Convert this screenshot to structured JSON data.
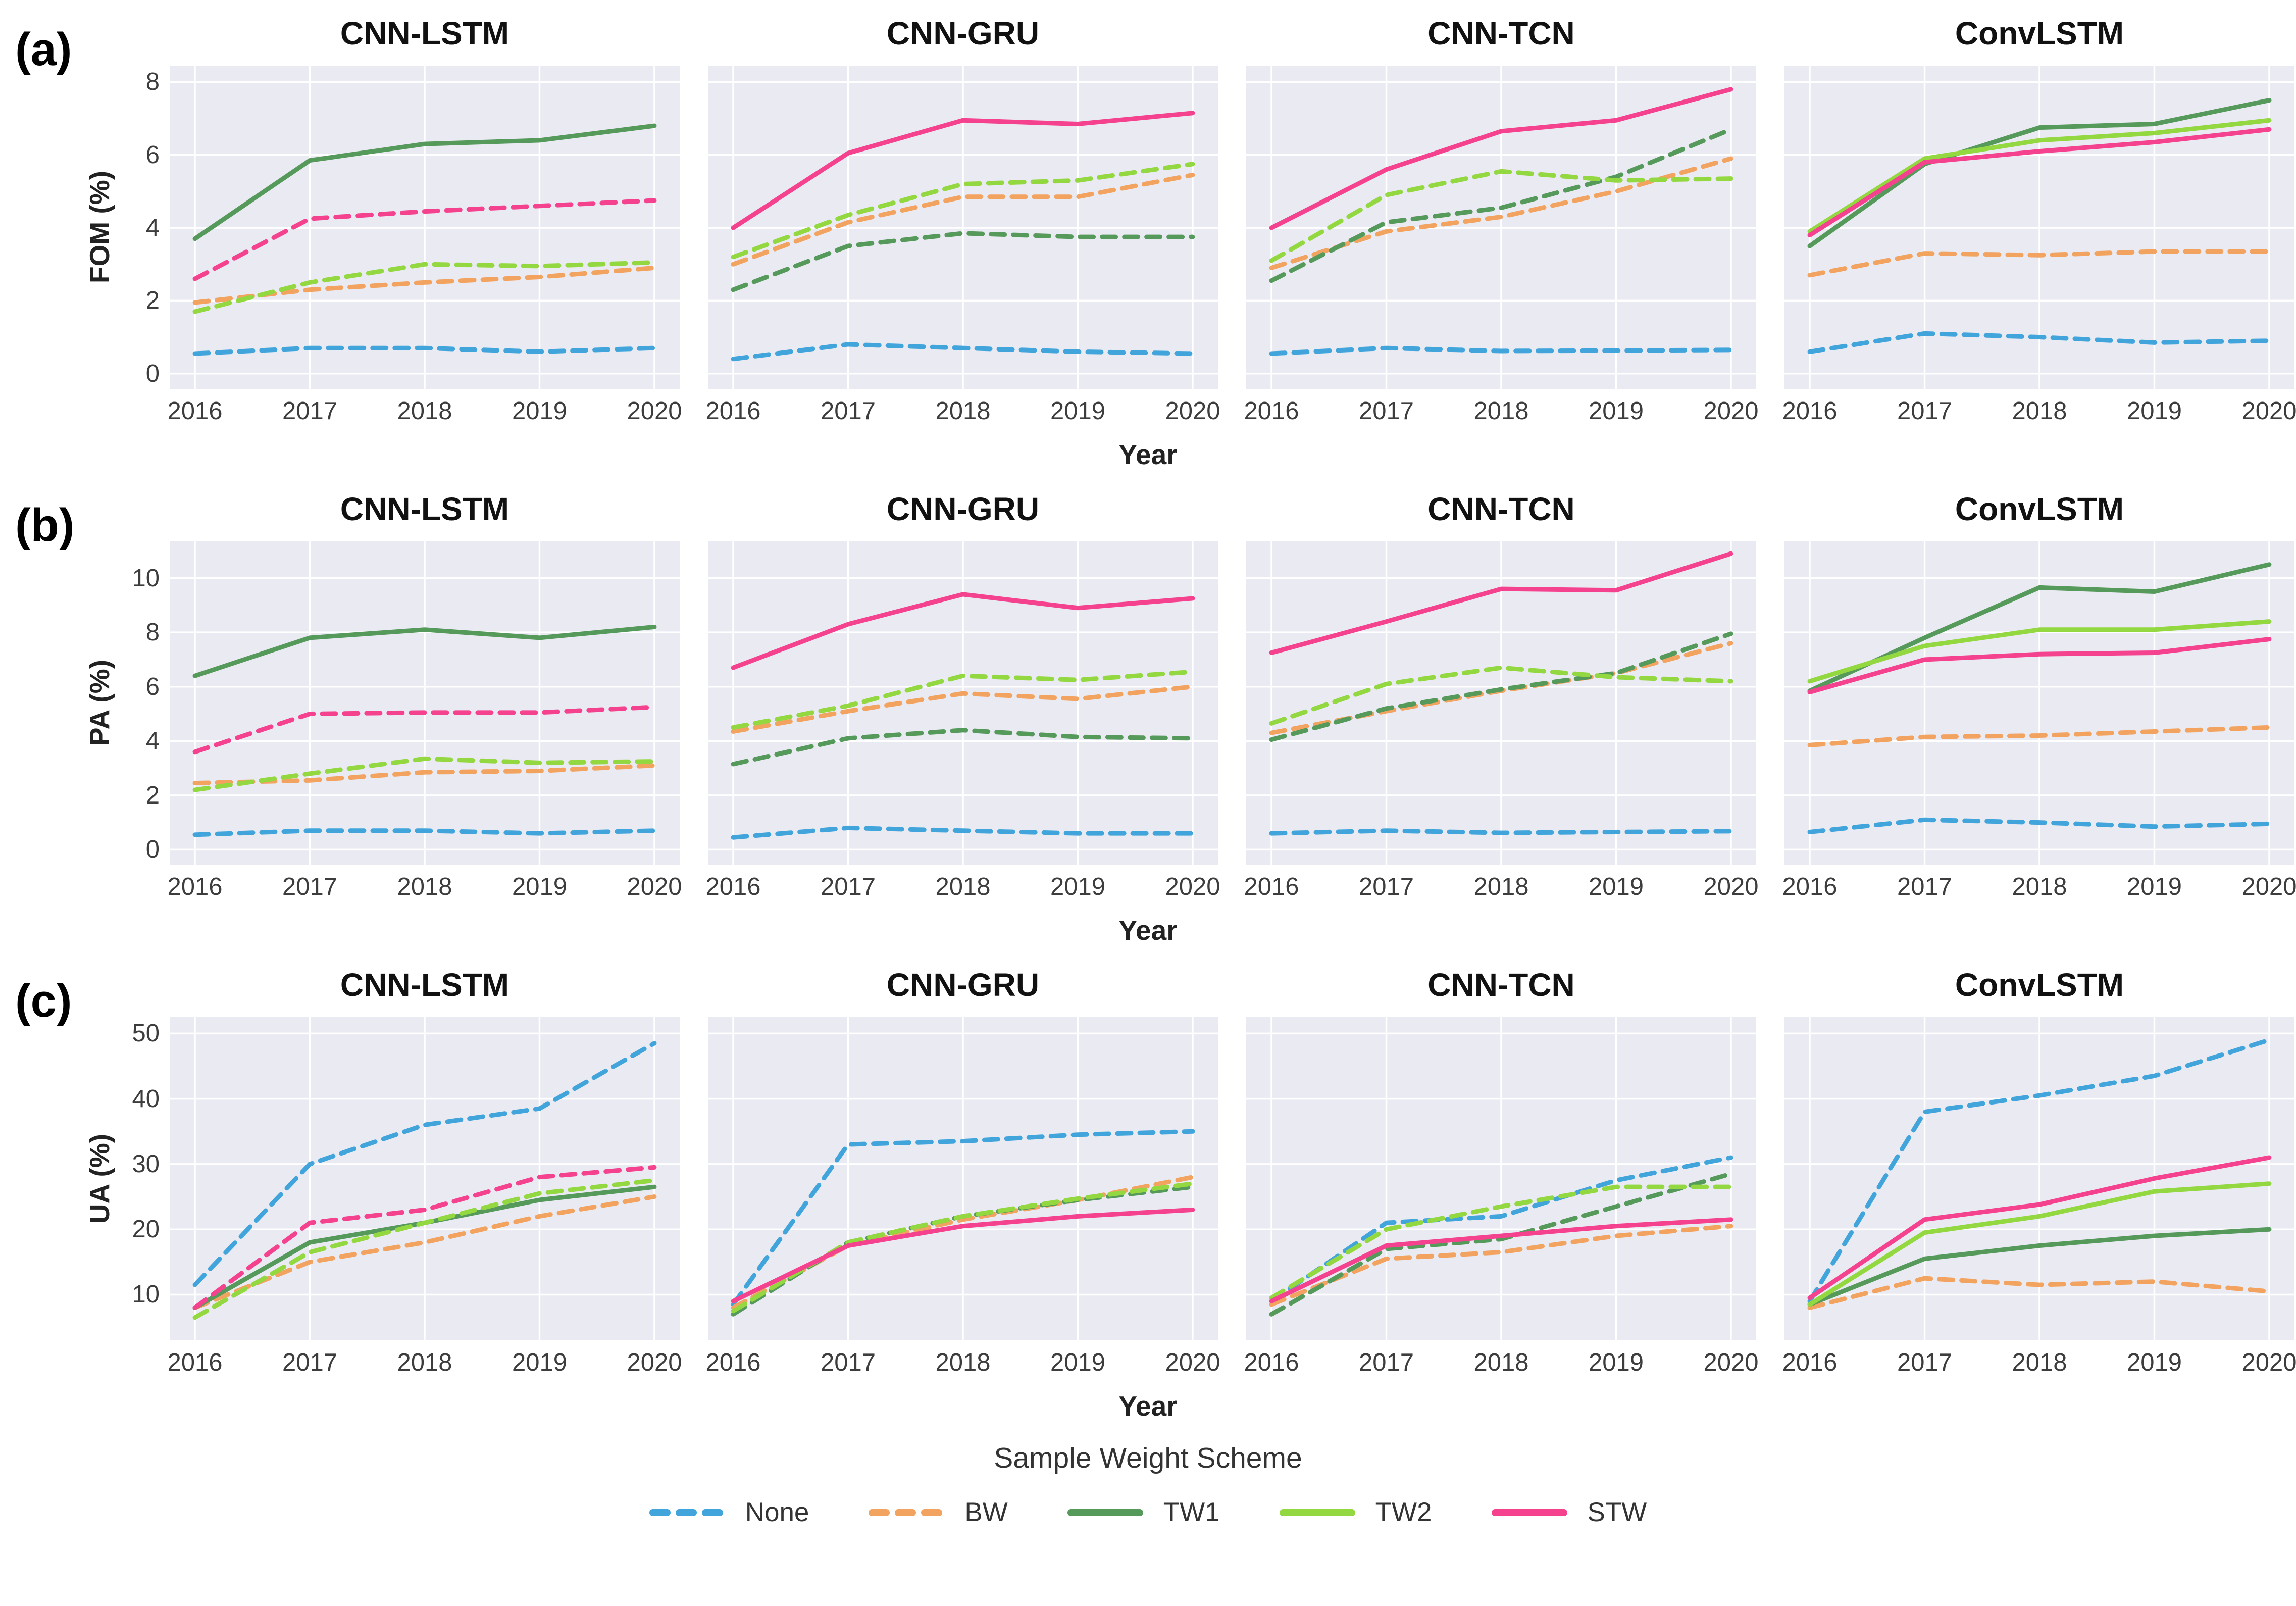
{
  "legend": {
    "title": "Sample Weight Scheme",
    "items": [
      {
        "label": "None",
        "color": "#41A5DC",
        "dash": true
      },
      {
        "label": "BW",
        "color": "#F2A360",
        "dash": true
      },
      {
        "label": "TW1",
        "color": "#569A5B",
        "dash": false
      },
      {
        "label": "TW2",
        "color": "#93D840",
        "dash": false
      },
      {
        "label": "STW",
        "color": "#F5428F",
        "dash": false
      }
    ]
  },
  "style": {
    "plot_bg": "#e9eaf2",
    "grid_color": "#ffffff"
  },
  "chart_data": [
    {
      "type": "line",
      "label": "(a)",
      "ylabel": "FOM (%)",
      "xlabel": "Year",
      "x": [
        2016,
        2017,
        2018,
        2019,
        2020
      ],
      "yticks": [
        0,
        2,
        4,
        6,
        8
      ],
      "ylim": [
        -0.42,
        8.45
      ],
      "xlim": [
        2015.78,
        2020.22
      ],
      "panels": [
        {
          "title": "CNN-LSTM",
          "series": [
            {
              "name": "None",
              "dash": true,
              "values": [
                0.55,
                0.7,
                0.7,
                0.6,
                0.7
              ]
            },
            {
              "name": "BW",
              "dash": true,
              "values": [
                1.95,
                2.3,
                2.5,
                2.65,
                2.9
              ]
            },
            {
              "name": "TW1",
              "dash": false,
              "values": [
                3.7,
                5.85,
                6.3,
                6.4,
                6.8
              ]
            },
            {
              "name": "TW2",
              "dash": true,
              "values": [
                1.7,
                2.5,
                3.0,
                2.95,
                3.05
              ]
            },
            {
              "name": "STW",
              "dash": true,
              "values": [
                2.6,
                4.25,
                4.45,
                4.6,
                4.75
              ]
            }
          ]
        },
        {
          "title": "CNN-GRU",
          "series": [
            {
              "name": "None",
              "dash": true,
              "values": [
                0.4,
                0.8,
                0.7,
                0.6,
                0.55
              ]
            },
            {
              "name": "BW",
              "dash": true,
              "values": [
                3.0,
                4.15,
                4.85,
                4.85,
                5.45
              ]
            },
            {
              "name": "TW1",
              "dash": true,
              "values": [
                2.3,
                3.5,
                3.85,
                3.75,
                3.75
              ]
            },
            {
              "name": "TW2",
              "dash": true,
              "values": [
                3.2,
                4.35,
                5.2,
                5.3,
                5.75
              ]
            },
            {
              "name": "STW",
              "dash": false,
              "values": [
                4.0,
                6.05,
                6.95,
                6.85,
                7.15
              ]
            }
          ]
        },
        {
          "title": "CNN-TCN",
          "series": [
            {
              "name": "None",
              "dash": true,
              "values": [
                0.55,
                0.7,
                0.62,
                0.63,
                0.65
              ]
            },
            {
              "name": "BW",
              "dash": true,
              "values": [
                2.9,
                3.9,
                4.3,
                5.0,
                5.9
              ]
            },
            {
              "name": "TW1",
              "dash": true,
              "values": [
                2.55,
                4.15,
                4.55,
                5.4,
                6.7
              ]
            },
            {
              "name": "TW2",
              "dash": true,
              "values": [
                3.1,
                4.9,
                5.55,
                5.3,
                5.35
              ]
            },
            {
              "name": "STW",
              "dash": false,
              "values": [
                4.0,
                5.6,
                6.65,
                6.95,
                7.8
              ]
            }
          ]
        },
        {
          "title": "ConvLSTM",
          "series": [
            {
              "name": "None",
              "dash": true,
              "values": [
                0.6,
                1.1,
                1.0,
                0.85,
                0.9
              ]
            },
            {
              "name": "BW",
              "dash": true,
              "values": [
                2.7,
                3.3,
                3.25,
                3.35,
                3.35
              ]
            },
            {
              "name": "TW1",
              "dash": false,
              "values": [
                3.5,
                5.75,
                6.75,
                6.85,
                7.5
              ]
            },
            {
              "name": "TW2",
              "dash": false,
              "values": [
                3.9,
                5.9,
                6.4,
                6.6,
                6.95
              ]
            },
            {
              "name": "STW",
              "dash": false,
              "values": [
                3.8,
                5.8,
                6.1,
                6.35,
                6.7
              ]
            }
          ]
        }
      ]
    },
    {
      "type": "line",
      "label": "(b)",
      "ylabel": "PA (%)",
      "xlabel": "Year",
      "x": [
        2016,
        2017,
        2018,
        2019,
        2020
      ],
      "yticks": [
        0,
        2,
        4,
        6,
        8,
        10
      ],
      "ylim": [
        -0.55,
        11.35
      ],
      "xlim": [
        2015.78,
        2020.22
      ],
      "panels": [
        {
          "title": "CNN-LSTM",
          "series": [
            {
              "name": "None",
              "dash": true,
              "values": [
                0.55,
                0.7,
                0.7,
                0.6,
                0.7
              ]
            },
            {
              "name": "BW",
              "dash": true,
              "values": [
                2.45,
                2.55,
                2.85,
                2.9,
                3.1
              ]
            },
            {
              "name": "TW1",
              "dash": false,
              "values": [
                6.4,
                7.8,
                8.1,
                7.8,
                8.2
              ]
            },
            {
              "name": "TW2",
              "dash": true,
              "values": [
                2.2,
                2.8,
                3.35,
                3.2,
                3.25
              ]
            },
            {
              "name": "STW",
              "dash": true,
              "values": [
                3.6,
                5.0,
                5.05,
                5.05,
                5.25
              ]
            }
          ]
        },
        {
          "title": "CNN-GRU",
          "series": [
            {
              "name": "None",
              "dash": true,
              "values": [
                0.45,
                0.8,
                0.7,
                0.6,
                0.6
              ]
            },
            {
              "name": "BW",
              "dash": true,
              "values": [
                4.35,
                5.1,
                5.75,
                5.55,
                6.0
              ]
            },
            {
              "name": "TW1",
              "dash": true,
              "values": [
                3.15,
                4.1,
                4.4,
                4.15,
                4.1
              ]
            },
            {
              "name": "TW2",
              "dash": true,
              "values": [
                4.5,
                5.3,
                6.4,
                6.25,
                6.55
              ]
            },
            {
              "name": "STW",
              "dash": false,
              "values": [
                6.7,
                8.3,
                9.4,
                8.9,
                9.25
              ]
            }
          ]
        },
        {
          "title": "CNN-TCN",
          "series": [
            {
              "name": "None",
              "dash": true,
              "values": [
                0.6,
                0.7,
                0.62,
                0.65,
                0.68
              ]
            },
            {
              "name": "BW",
              "dash": true,
              "values": [
                4.3,
                5.1,
                5.85,
                6.5,
                7.6
              ]
            },
            {
              "name": "TW1",
              "dash": true,
              "values": [
                4.05,
                5.2,
                5.9,
                6.5,
                7.95
              ]
            },
            {
              "name": "TW2",
              "dash": true,
              "values": [
                4.65,
                6.1,
                6.7,
                6.35,
                6.2
              ]
            },
            {
              "name": "STW",
              "dash": false,
              "values": [
                7.25,
                8.4,
                9.6,
                9.55,
                10.9
              ]
            }
          ]
        },
        {
          "title": "ConvLSTM",
          "series": [
            {
              "name": "None",
              "dash": true,
              "values": [
                0.65,
                1.1,
                1.0,
                0.85,
                0.95
              ]
            },
            {
              "name": "BW",
              "dash": true,
              "values": [
                3.85,
                4.15,
                4.2,
                4.35,
                4.5
              ]
            },
            {
              "name": "TW1",
              "dash": false,
              "values": [
                5.85,
                7.8,
                9.65,
                9.5,
                10.5
              ]
            },
            {
              "name": "TW2",
              "dash": false,
              "values": [
                6.2,
                7.5,
                8.1,
                8.1,
                8.4
              ]
            },
            {
              "name": "STW",
              "dash": false,
              "values": [
                5.8,
                7.0,
                7.2,
                7.25,
                7.75
              ]
            }
          ]
        }
      ]
    },
    {
      "type": "line",
      "label": "(c)",
      "ylabel": "UA (%)",
      "xlabel": "Year",
      "x": [
        2016,
        2017,
        2018,
        2019,
        2020
      ],
      "yticks": [
        10,
        20,
        30,
        40,
        50
      ],
      "ylim": [
        3.0,
        52.5
      ],
      "xlim": [
        2015.78,
        2020.22
      ],
      "panels": [
        {
          "title": "CNN-LSTM",
          "series": [
            {
              "name": "None",
              "dash": true,
              "values": [
                11.5,
                30,
                36,
                38.5,
                48.5
              ]
            },
            {
              "name": "BW",
              "dash": true,
              "values": [
                8,
                15,
                18,
                22,
                25
              ]
            },
            {
              "name": "TW1",
              "dash": false,
              "values": [
                8,
                18,
                21,
                24.5,
                26.5
              ]
            },
            {
              "name": "TW2",
              "dash": true,
              "values": [
                6.5,
                16.5,
                21,
                25.5,
                27.5
              ]
            },
            {
              "name": "STW",
              "dash": true,
              "values": [
                8,
                21,
                23,
                28,
                29.5
              ]
            }
          ]
        },
        {
          "title": "CNN-GRU",
          "series": [
            {
              "name": "None",
              "dash": true,
              "values": [
                8.5,
                33,
                33.5,
                34.5,
                35
              ]
            },
            {
              "name": "BW",
              "dash": true,
              "values": [
                8,
                17.5,
                21.5,
                24.5,
                28
              ]
            },
            {
              "name": "TW1",
              "dash": true,
              "values": [
                7,
                18,
                22,
                24.5,
                26.5
              ]
            },
            {
              "name": "TW2",
              "dash": true,
              "values": [
                7.5,
                18,
                22,
                24.7,
                27
              ]
            },
            {
              "name": "STW",
              "dash": false,
              "values": [
                9,
                17.5,
                20.5,
                22,
                23
              ]
            }
          ]
        },
        {
          "title": "CNN-TCN",
          "series": [
            {
              "name": "None",
              "dash": true,
              "values": [
                9,
                21,
                22,
                27.5,
                31
              ]
            },
            {
              "name": "BW",
              "dash": true,
              "values": [
                8.5,
                15.5,
                16.5,
                19,
                20.5
              ]
            },
            {
              "name": "TW1",
              "dash": true,
              "values": [
                7,
                17,
                18.5,
                23.5,
                28.5
              ]
            },
            {
              "name": "TW2",
              "dash": true,
              "values": [
                9.5,
                20,
                23.5,
                26.5,
                26.5
              ]
            },
            {
              "name": "STW",
              "dash": false,
              "values": [
                9,
                17.5,
                19,
                20.5,
                21.5
              ]
            }
          ]
        },
        {
          "title": "ConvLSTM",
          "series": [
            {
              "name": "None",
              "dash": true,
              "values": [
                9,
                38,
                40.5,
                43.5,
                49
              ]
            },
            {
              "name": "BW",
              "dash": true,
              "values": [
                8,
                12.5,
                11.5,
                12,
                10.5
              ]
            },
            {
              "name": "TW1",
              "dash": false,
              "values": [
                8.5,
                15.5,
                17.5,
                19,
                20
              ]
            },
            {
              "name": "TW2",
              "dash": false,
              "values": [
                8.5,
                19.5,
                22,
                25.8,
                27
              ]
            },
            {
              "name": "STW",
              "dash": false,
              "values": [
                9.5,
                21.5,
                23.8,
                27.8,
                31
              ]
            }
          ]
        }
      ]
    }
  ]
}
